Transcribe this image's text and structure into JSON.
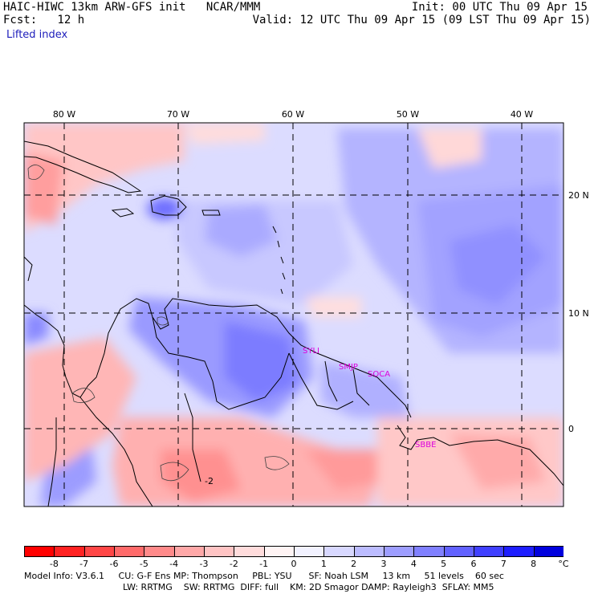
{
  "header": {
    "model_line": "HAIC-HIWC 13km ARW-GFS init   NCAR/MMM",
    "init_line": "Init: 00 UTC Thu 09 Apr 15",
    "fcst_line": "Fcst:   12 h",
    "valid_line": "Valid: 12 UTC Thu 09 Apr 15 (09 LST Thu 09 Apr 15)",
    "field_name": "Lifted index"
  },
  "map": {
    "lon_labels": [
      "80 W",
      "70 W",
      "60 W",
      "50 W",
      "40 W"
    ],
    "lat_labels": [
      "20 N",
      "10 N",
      "0"
    ],
    "stations": [
      "SYLI",
      "SMJP",
      "SOCA",
      "SBBE"
    ],
    "contour_label": "-2"
  },
  "colorbar": {
    "unit": "°C",
    "ticks": [
      "-8",
      "-7",
      "-6",
      "-5",
      "-4",
      "-3",
      "-2",
      "-1",
      "0",
      "1",
      "2",
      "3",
      "4",
      "5",
      "6",
      "7",
      "8"
    ],
    "colors": [
      "#ff0000",
      "#ff2222",
      "#ff4646",
      "#ff6a6a",
      "#ff8a8a",
      "#ffa8a8",
      "#ffc4c4",
      "#ffdcdc",
      "#fff4f4",
      "#f2f2ff",
      "#d8d8ff",
      "#bcbcff",
      "#9e9eff",
      "#8080ff",
      "#6262ff",
      "#4040ff",
      "#1e1eff",
      "#0000dd"
    ]
  },
  "footer": {
    "line1": "Model Info: V3.6.1     CU: G-F Ens MP: Thompson     PBL: YSU      SF: Noah LSM     13 km     51 levels    60 sec",
    "line2": "LW: RRTMG    SW: RRTMG  DIFF: full    KM: 2D Smagor DAMP: Rayleigh3  SFLAY: MM5"
  }
}
